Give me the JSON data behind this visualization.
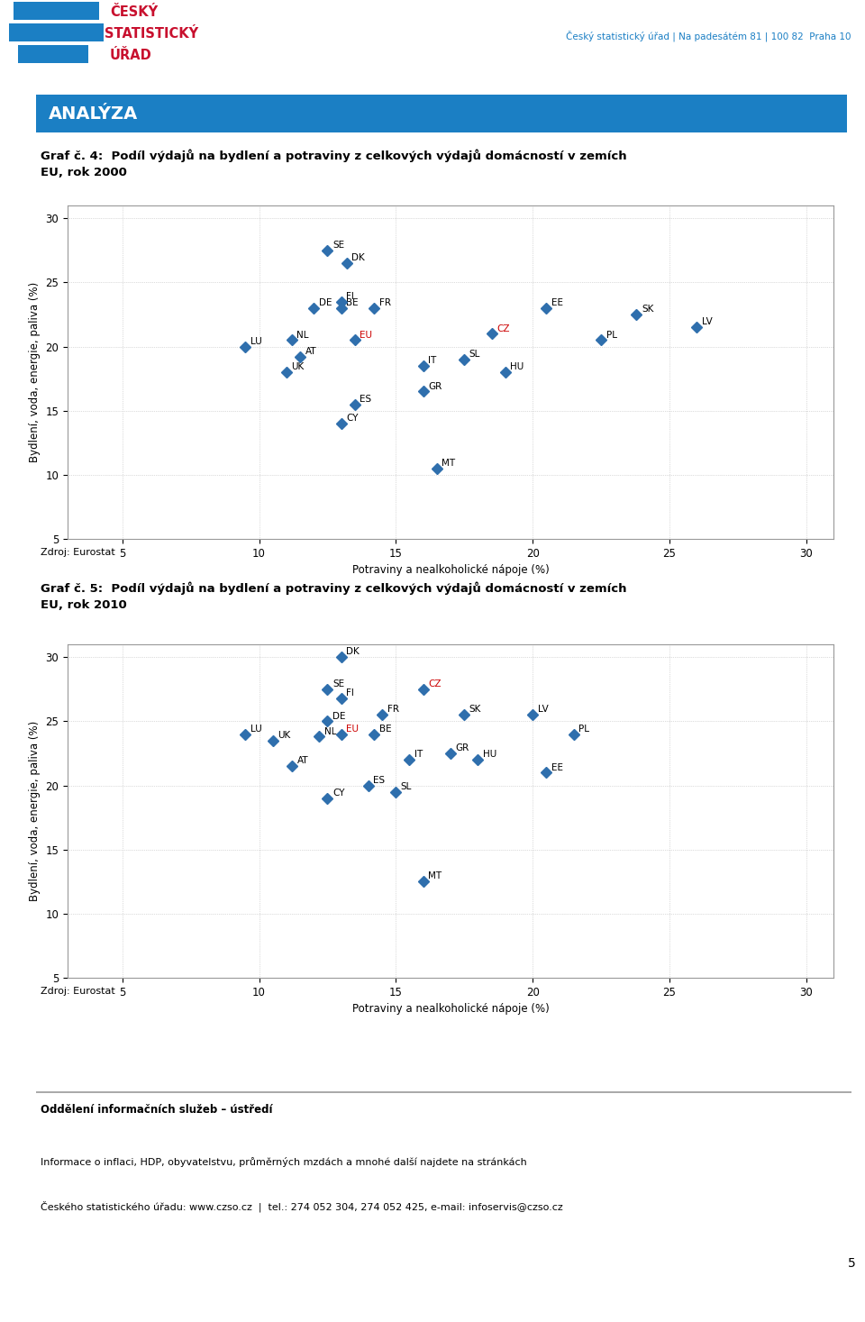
{
  "title1": "Graf č. 4:  Podíl výdajů na bydlení a potraviny z celkových výdajů domácností v zemích\nEU, rok 2000",
  "title2": "Graf č. 5:  Podíl výdajů na bydlení a potraviny z celkových výdajů domácností v zemích\nEU, rok 2010",
  "xlabel": "Potraviny a nealkoholické nápoje (%)",
  "ylabel": "Bydlení, voda, energie, paliva (%)",
  "source": "Zdroj: Eurostat",
  "header_text": "Český statistický úřad | Na padesátém 81 | 100 82  Praha 10",
  "analyza_label": "ANALÝZA",
  "chart1_data": {
    "countries": [
      "SE",
      "DK",
      "FI",
      "BE",
      "DE",
      "FR",
      "LU",
      "NL",
      "AT",
      "UK",
      "EE",
      "CZ",
      "SK",
      "LV",
      "PL",
      "HU",
      "SL",
      "IT",
      "GR",
      "ES",
      "CY",
      "MT",
      "EU"
    ],
    "x": [
      12.5,
      13.2,
      13.0,
      13.0,
      12.0,
      14.2,
      9.5,
      11.2,
      11.5,
      11.0,
      20.5,
      18.5,
      23.8,
      26.0,
      22.5,
      19.0,
      17.5,
      16.0,
      16.0,
      13.5,
      13.0,
      16.5,
      13.5
    ],
    "y": [
      27.5,
      26.5,
      23.5,
      23.0,
      23.0,
      23.0,
      20.0,
      20.5,
      19.2,
      18.0,
      23.0,
      21.0,
      22.5,
      21.5,
      20.5,
      18.0,
      19.0,
      18.5,
      16.5,
      15.5,
      14.0,
      10.5,
      20.5
    ],
    "special": [
      "CZ",
      "EU"
    ]
  },
  "chart2_data": {
    "countries": [
      "DK",
      "SE",
      "FI",
      "DE",
      "FR",
      "LU",
      "UK",
      "NL",
      "AT",
      "CZ",
      "EU",
      "BE",
      "SK",
      "LV",
      "PL",
      "EE",
      "HU",
      "GR",
      "IT",
      "SL",
      "ES",
      "CY",
      "MT"
    ],
    "x": [
      13.0,
      12.5,
      13.0,
      12.5,
      14.5,
      9.5,
      10.5,
      12.2,
      11.2,
      16.0,
      13.0,
      14.2,
      17.5,
      20.0,
      21.5,
      20.5,
      18.0,
      17.0,
      15.5,
      15.0,
      14.0,
      12.5,
      16.0
    ],
    "y": [
      30.0,
      27.5,
      26.8,
      25.0,
      25.5,
      24.0,
      23.5,
      23.8,
      21.5,
      27.5,
      24.0,
      24.0,
      25.5,
      25.5,
      24.0,
      21.0,
      22.0,
      22.5,
      22.0,
      19.5,
      20.0,
      19.0,
      12.5
    ],
    "special": [
      "CZ",
      "EU"
    ]
  },
  "xlim": [
    3,
    31
  ],
  "ylim": [
    5,
    31
  ],
  "xticks": [
    5,
    10,
    15,
    20,
    25,
    30
  ],
  "yticks": [
    5,
    10,
    15,
    20,
    25,
    30
  ],
  "point_color": "#2F6FAD",
  "special_color": "#CC0000",
  "grid_color": "#AAAAAA",
  "marker_size": 6,
  "header_bar_color": "#1B7FC4",
  "footer_texts": [
    "Oddělení informačních služeb – ústředí",
    "Informace o inflaci, HDP, obyvatelstvu, průměrných mzdách a mnohé další najdete na stránkách",
    "Českého statistického úřadu: www.czso.cz  |  tel.: 274 052 304, 274 052 425, e-mail: infoservis@czso.cz"
  ],
  "page_number": "5",
  "logo_blue": "#1B7FC4",
  "logo_red": "#C8102E"
}
